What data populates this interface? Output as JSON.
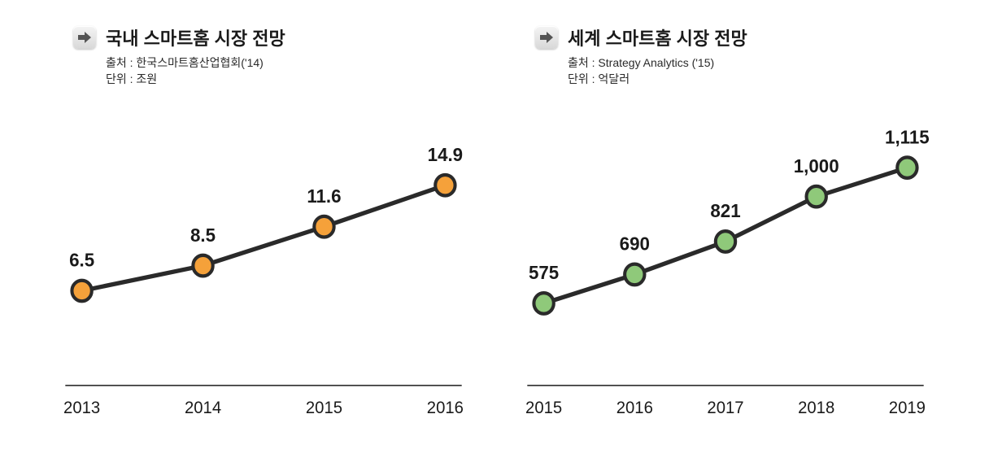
{
  "background_color": "#ffffff",
  "line_color": "#2a2a2a",
  "axis_color": "#1a1a1a",
  "text_color": "#1a1a1a",
  "title_fontsize": 22,
  "label_fontsize": 22,
  "tick_fontsize": 20,
  "marker_radius": 12,
  "marker_stroke": 4,
  "line_width": 5,
  "charts": [
    {
      "type": "line",
      "title": "국내 스마트홈 시장 전망",
      "source_label": "출처 : 한국스마트홈산업협회('14)",
      "unit_label": "단위 : 조원",
      "marker_fill": "#f5a13a",
      "categories": [
        "2013",
        "2014",
        "2015",
        "2016"
      ],
      "values": [
        6.5,
        8.5,
        11.6,
        14.9
      ],
      "value_labels": [
        "6.5",
        "8.5",
        "11.6",
        "14.9"
      ],
      "y_min": 0,
      "y_max": 20
    },
    {
      "type": "line",
      "title": "세계 스마트홈 시장 전망",
      "source_label": "출처 : Strategy Analytics ('15)",
      "unit_label": "단위 : 억달러",
      "marker_fill": "#8fc97a",
      "categories": [
        "2015",
        "2016",
        "2017",
        "2018",
        "2019"
      ],
      "values": [
        575,
        690,
        821,
        1000,
        1115
      ],
      "value_labels": [
        "575",
        "690",
        "821",
        "1,000",
        "1,115"
      ],
      "y_min": 300,
      "y_max": 1300
    }
  ]
}
